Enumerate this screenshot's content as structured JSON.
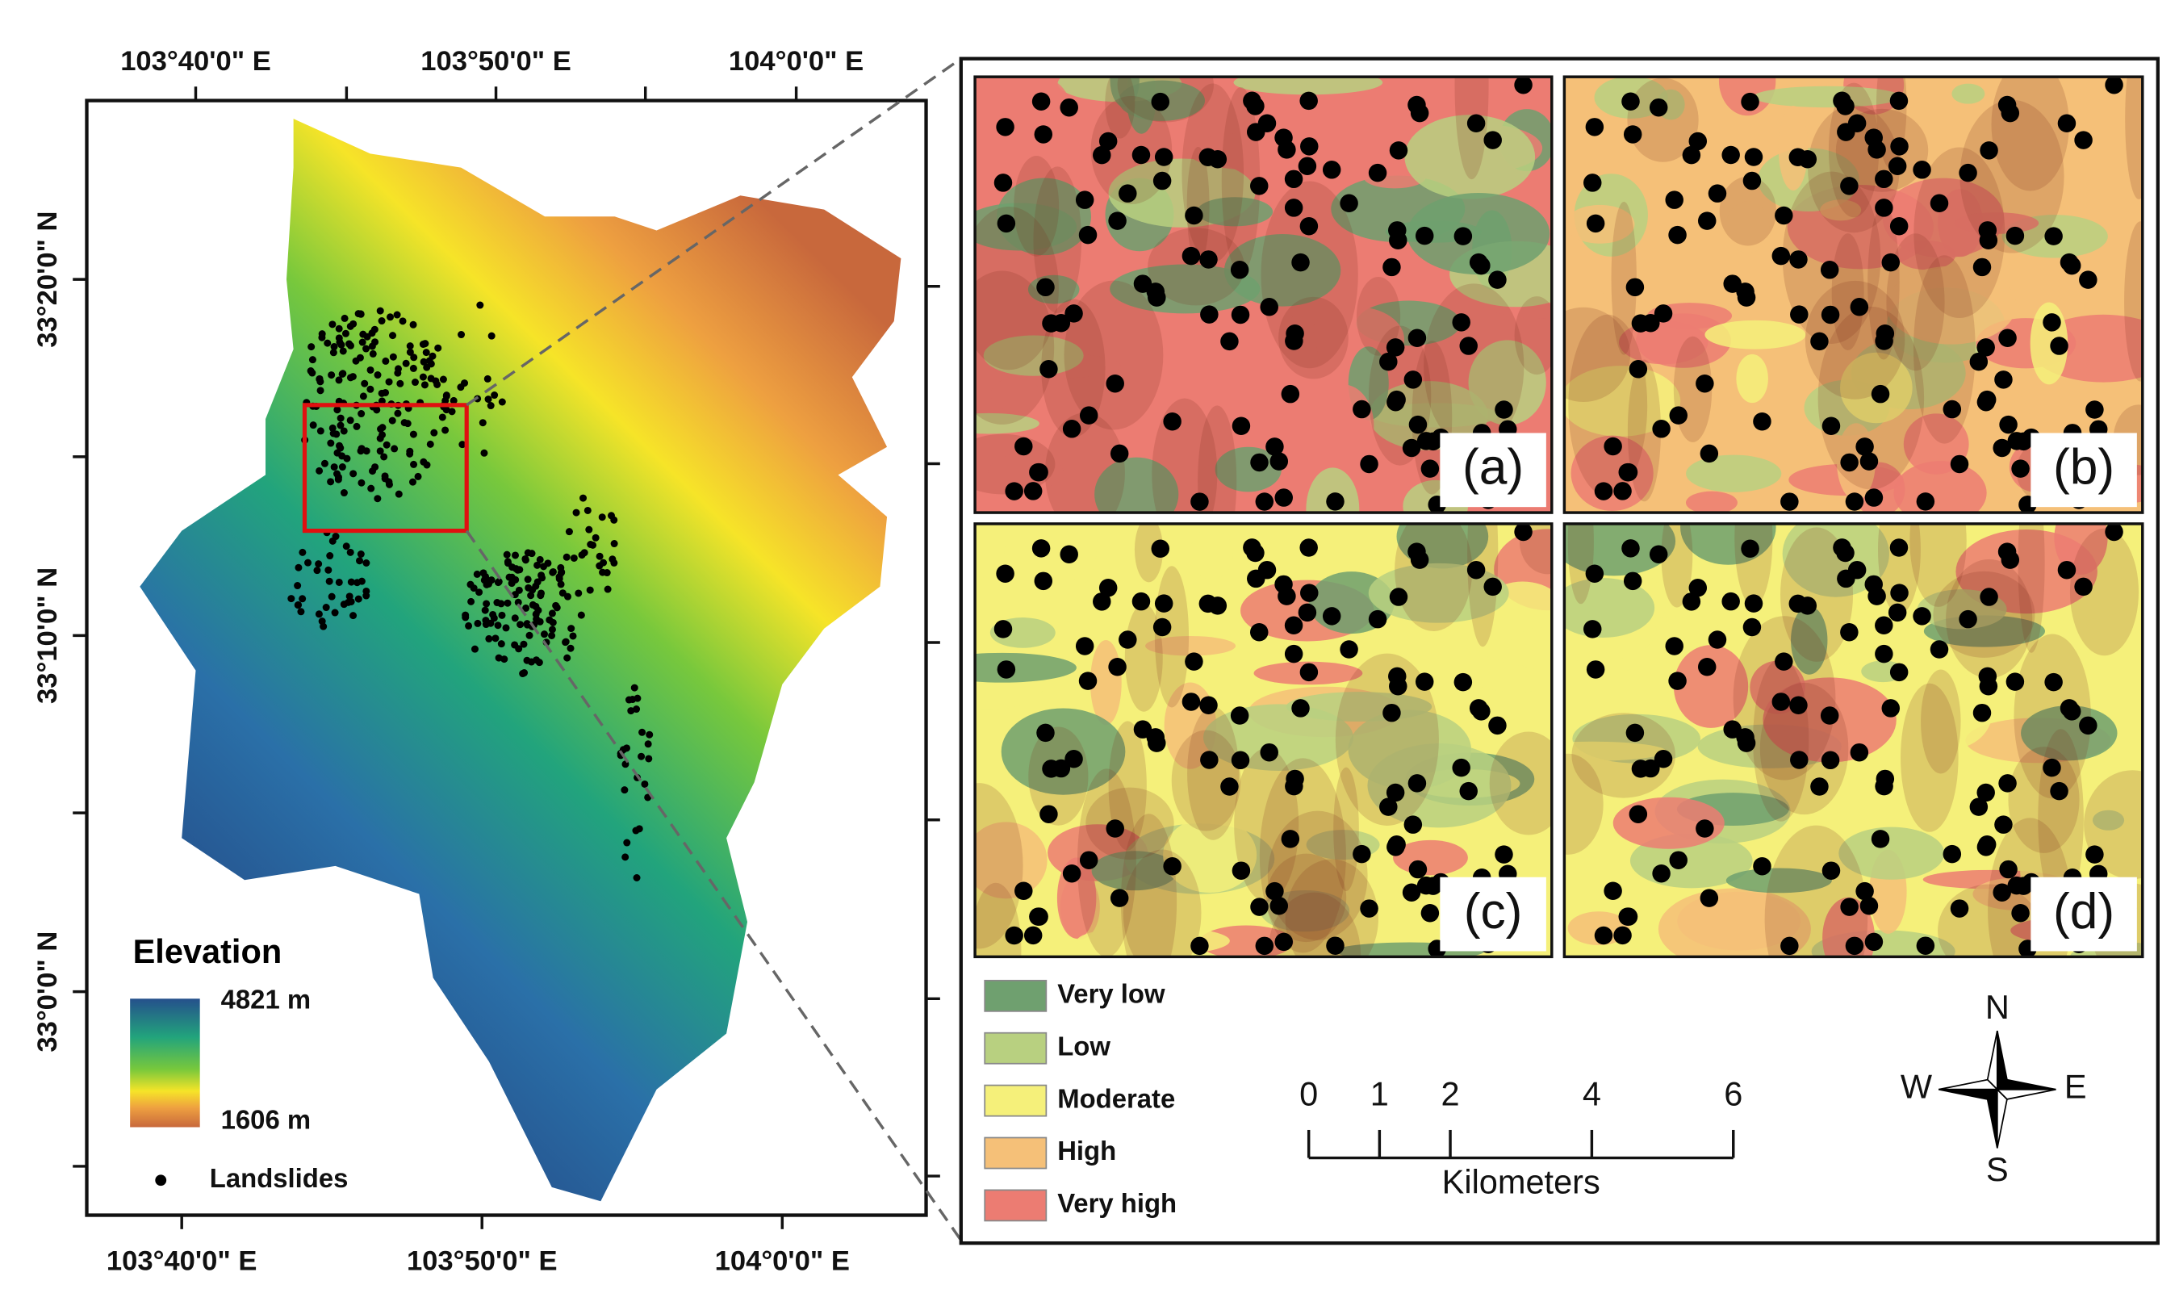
{
  "overview_map": {
    "top_labels": [
      "103°40'0\" E",
      "103°50'0\" E",
      "104°0'0\" E"
    ],
    "bottom_labels": [
      "103°40'0\" E",
      "103°50'0\" E",
      "104°0'0\" E"
    ],
    "left_labels": [
      "33°20'0\" N",
      "33°10'0\" N",
      "33°0'0\" N"
    ],
    "legend": {
      "title": "Elevation",
      "max_label": "4821 m",
      "min_label": "1606 m",
      "points_label": "Landslides"
    }
  },
  "panels": [
    {
      "label": "(a)"
    },
    {
      "label": "(b)"
    },
    {
      "label": "(c)"
    },
    {
      "label": "(d)"
    }
  ],
  "susceptibility_legend": [
    {
      "label": "Very low",
      "color": "#6fa06f"
    },
    {
      "label": "Low",
      "color": "#b8d080"
    },
    {
      "label": "Moderate",
      "color": "#f5f07a"
    },
    {
      "label": "High",
      "color": "#f5c078"
    },
    {
      "label": "Very high",
      "color": "#ec7c72"
    }
  ],
  "scale_bar": {
    "ticks": [
      0,
      1,
      2,
      4,
      6
    ],
    "unit": "Kilometers"
  },
  "compass": {
    "north": "N",
    "south": "S",
    "east": "E",
    "west": "W"
  }
}
